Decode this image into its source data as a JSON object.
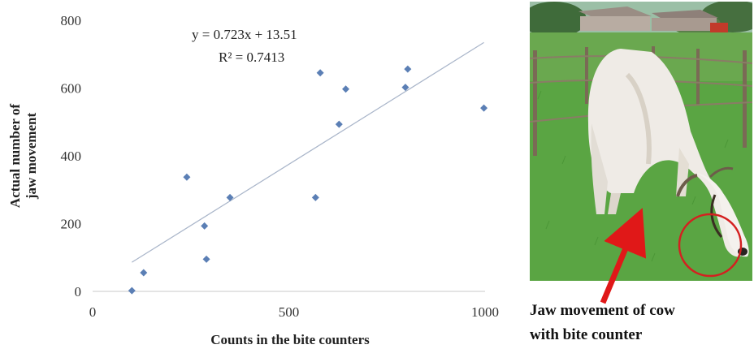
{
  "chart_data": {
    "type": "scatter",
    "title": "",
    "xlabel": "Counts in the bite counters",
    "ylabel_lines": [
      "Actual number of",
      "jaw movement"
    ],
    "xlim": [
      0,
      1000
    ],
    "ylim": [
      0,
      800
    ],
    "x_ticks": [
      0,
      500,
      1000
    ],
    "y_ticks": [
      0,
      200,
      400,
      600,
      800
    ],
    "x_tick_labels": [
      "0",
      "500",
      "1000"
    ],
    "y_tick_labels": [
      "0",
      "200",
      "400",
      "600",
      "800"
    ],
    "grid": false,
    "marker_color": "#5b7fb5",
    "trendline_color": "#a9b5c9",
    "points": [
      {
        "x": 100,
        "y": 2
      },
      {
        "x": 130,
        "y": 55
      },
      {
        "x": 240,
        "y": 337
      },
      {
        "x": 285,
        "y": 193
      },
      {
        "x": 290,
        "y": 95
      },
      {
        "x": 350,
        "y": 277
      },
      {
        "x": 568,
        "y": 277
      },
      {
        "x": 580,
        "y": 645
      },
      {
        "x": 628,
        "y": 493
      },
      {
        "x": 645,
        "y": 597
      },
      {
        "x": 797,
        "y": 602
      },
      {
        "x": 803,
        "y": 656
      },
      {
        "x": 997,
        "y": 541
      }
    ],
    "trendline": {
      "slope": 0.723,
      "intercept": 13.51,
      "x_range": [
        100,
        997
      ],
      "equation": "y = 0.723x + 13.51",
      "r_squared": "R² = 0.7413"
    }
  },
  "photo": {
    "subject": "white cow grazing in green pasture",
    "highlight_color": "#d42020",
    "arrow_color": "#e01818"
  },
  "caption": {
    "line1": "Jaw movement of cow",
    "line2": "with bite counter"
  }
}
